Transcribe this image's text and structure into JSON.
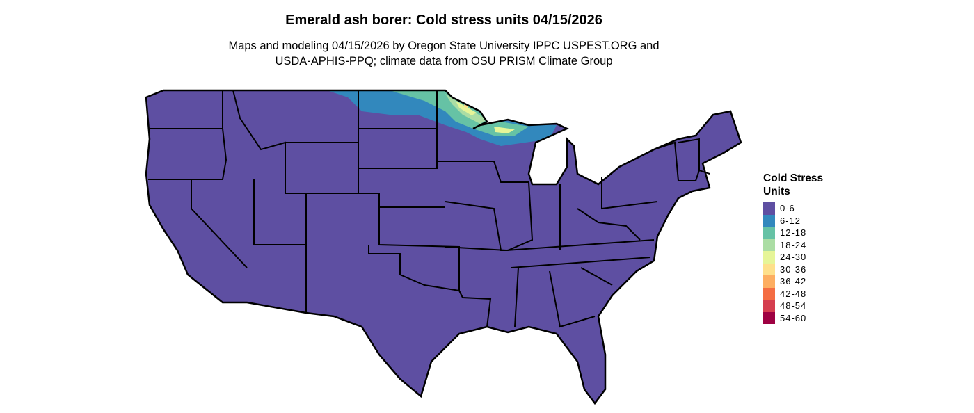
{
  "title": "Emerald ash borer: Cold stress units 04/15/2026",
  "subtitle_line1": "Maps and modeling 04/15/2026 by Oregon State University IPPC USPEST.ORG and",
  "subtitle_line2": "USDA-APHIS-PPQ; climate data from OSU PRISM Climate Group",
  "legend": {
    "title_line1": "Cold Stress",
    "title_line2": "Units",
    "items": [
      {
        "label": "0-6",
        "color": "#5E4FA2"
      },
      {
        "label": "6-12",
        "color": "#3288BD"
      },
      {
        "label": "12-18",
        "color": "#66C2A5"
      },
      {
        "label": "18-24",
        "color": "#ABDDA4"
      },
      {
        "label": "24-30",
        "color": "#E6F598"
      },
      {
        "label": "30-36",
        "color": "#FEE08B"
      },
      {
        "label": "36-42",
        "color": "#FDAE61"
      },
      {
        "label": "42-48",
        "color": "#F46D43"
      },
      {
        "label": "48-54",
        "color": "#D53E4F"
      },
      {
        "label": "54-60",
        "color": "#9E0142"
      }
    ]
  }
}
